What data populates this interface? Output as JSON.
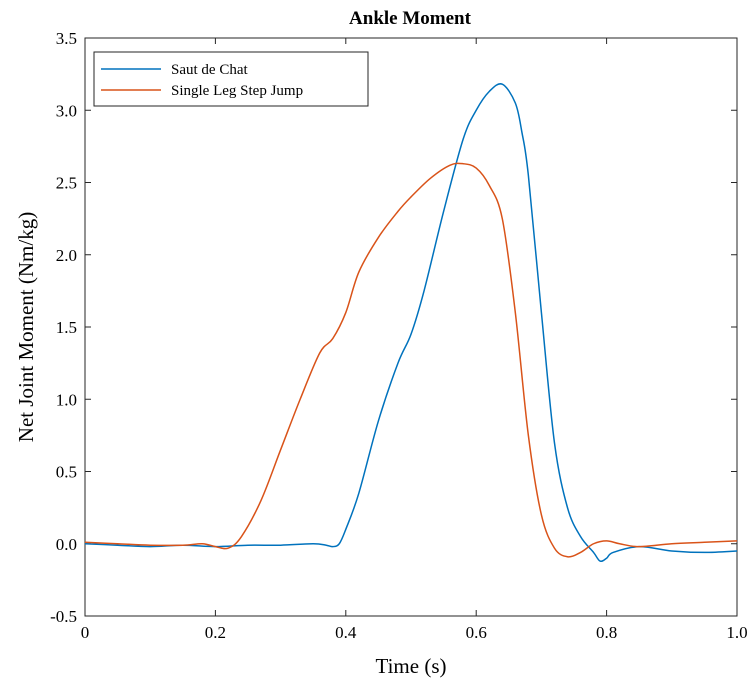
{
  "chart_data": {
    "type": "line",
    "title": "Ankle Moment",
    "xlabel": "Time (s)",
    "ylabel": "Net Joint Moment (Nm/kg)",
    "xlim": [
      0,
      1.0
    ],
    "ylim": [
      -0.5,
      3.5
    ],
    "xticks": [
      0,
      0.2,
      0.4,
      0.6,
      0.8,
      1.0
    ],
    "xtick_labels": [
      "0",
      "0.2",
      "0.4",
      "0.6",
      "0.8",
      "1.0"
    ],
    "yticks": [
      -0.5,
      0.0,
      0.5,
      1.0,
      1.5,
      2.0,
      2.5,
      3.0,
      3.5
    ],
    "ytick_labels": [
      "-0.5",
      "0.0",
      "0.5",
      "1.0",
      "1.5",
      "2.0",
      "2.5",
      "3.0",
      "3.5"
    ],
    "grid": false,
    "legend_position": "top-left",
    "series": [
      {
        "name": "Saut de Chat",
        "color": "#0072BD",
        "x": [
          0,
          0.05,
          0.1,
          0.15,
          0.2,
          0.25,
          0.3,
          0.35,
          0.37,
          0.38,
          0.39,
          0.4,
          0.42,
          0.45,
          0.48,
          0.5,
          0.52,
          0.55,
          0.58,
          0.6,
          0.62,
          0.64,
          0.66,
          0.67,
          0.68,
          0.7,
          0.72,
          0.74,
          0.76,
          0.78,
          0.79,
          0.8,
          0.81,
          0.85,
          0.9,
          0.95,
          1.0
        ],
        "y": [
          0.0,
          -0.01,
          -0.02,
          -0.01,
          -0.02,
          -0.01,
          -0.01,
          0.0,
          -0.01,
          -0.02,
          0.0,
          0.1,
          0.35,
          0.85,
          1.25,
          1.45,
          1.75,
          2.3,
          2.8,
          3.0,
          3.13,
          3.18,
          3.05,
          2.85,
          2.55,
          1.6,
          0.7,
          0.25,
          0.05,
          -0.06,
          -0.12,
          -0.1,
          -0.06,
          -0.02,
          -0.05,
          -0.06,
          -0.05
        ]
      },
      {
        "name": "Single Leg Step Jump",
        "color": "#D95319",
        "x": [
          0,
          0.05,
          0.1,
          0.15,
          0.18,
          0.2,
          0.22,
          0.24,
          0.27,
          0.3,
          0.33,
          0.36,
          0.38,
          0.4,
          0.42,
          0.45,
          0.48,
          0.5,
          0.53,
          0.56,
          0.58,
          0.6,
          0.62,
          0.64,
          0.66,
          0.68,
          0.7,
          0.72,
          0.74,
          0.76,
          0.78,
          0.8,
          0.82,
          0.85,
          0.9,
          0.95,
          1.0
        ],
        "y": [
          0.01,
          0.0,
          -0.01,
          -0.01,
          0.0,
          -0.02,
          -0.03,
          0.05,
          0.3,
          0.65,
          1.0,
          1.32,
          1.42,
          1.6,
          1.88,
          2.12,
          2.3,
          2.4,
          2.53,
          2.62,
          2.63,
          2.6,
          2.48,
          2.25,
          1.6,
          0.75,
          0.2,
          -0.03,
          -0.09,
          -0.06,
          0.0,
          0.02,
          0.0,
          -0.02,
          0.0,
          0.01,
          0.02
        ]
      }
    ]
  }
}
